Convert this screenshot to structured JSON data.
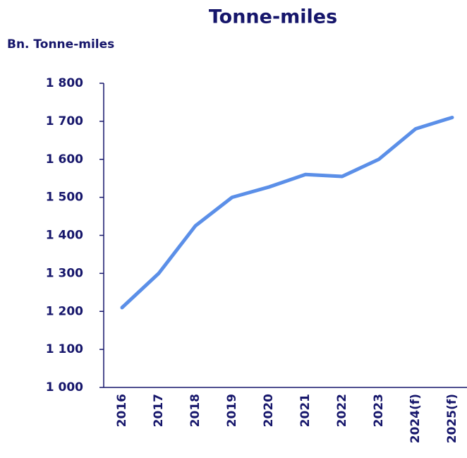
{
  "chart_data": {
    "type": "line",
    "title": "Tonne-miles",
    "y_label": "Bn. Tonne-miles",
    "categories": [
      "2016",
      "2017",
      "2018",
      "2019",
      "2020",
      "2021",
      "2022",
      "2023",
      "2024(f)",
      "2025(f)"
    ],
    "series": [
      {
        "name": "Tonne-miles",
        "color": "#5b8fe8",
        "values": [
          1210,
          1300,
          1425,
          1500,
          1527,
          1560,
          1555,
          1600,
          1680,
          1710
        ]
      }
    ],
    "ylim": [
      1000,
      1800
    ],
    "yticks": [
      {
        "value": 1000,
        "label": "1 000"
      },
      {
        "value": 1100,
        "label": "1 100"
      },
      {
        "value": 1200,
        "label": "1 200"
      },
      {
        "value": 1300,
        "label": "1 300"
      },
      {
        "value": 1400,
        "label": "1 400"
      },
      {
        "value": 1500,
        "label": "1 500"
      },
      {
        "value": 1600,
        "label": "1 600"
      },
      {
        "value": 1700,
        "label": "1 700"
      },
      {
        "value": 1800,
        "label": "1 800"
      }
    ]
  }
}
